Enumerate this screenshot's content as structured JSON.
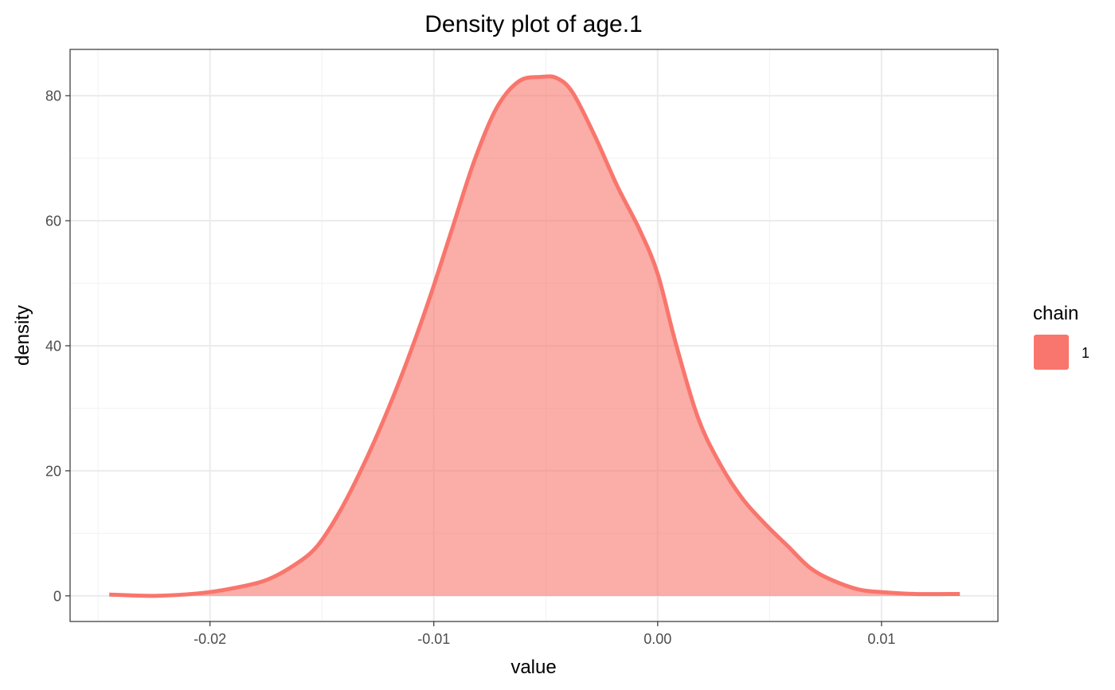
{
  "chart_data": {
    "type": "area",
    "title": "Density plot of  age.1",
    "xlabel": "value",
    "ylabel": "density",
    "xlim": [
      -0.02625,
      0.0152
    ],
    "ylim": [
      -4.1,
      87.4
    ],
    "x_ticks": [
      -0.02,
      -0.01,
      0.0,
      0.01
    ],
    "x_tick_labels": [
      "-0.02",
      "-0.01",
      "0.00",
      "0.01"
    ],
    "y_ticks": [
      0,
      20,
      40,
      60,
      80
    ],
    "y_tick_labels": [
      "0",
      "20",
      "40",
      "60",
      "80"
    ],
    "grid": true,
    "legend": {
      "title": "chain",
      "placement": "right"
    },
    "series": [
      {
        "name": "1",
        "color": "#f8766d",
        "fill_color": "#f8766d",
        "fill_opacity": 0.6,
        "x": [
          -0.0245,
          -0.0225,
          -0.0205,
          -0.019,
          -0.0175,
          -0.0162,
          -0.0152,
          -0.0142,
          -0.0132,
          -0.0122,
          -0.0112,
          -0.0102,
          -0.0092,
          -0.0082,
          -0.0072,
          -0.0062,
          -0.0052,
          -0.0045,
          -0.0038,
          -0.0028,
          -0.0018,
          -0.0008,
          0.0,
          0.0008,
          0.0018,
          0.0028,
          0.0038,
          0.0048,
          0.0058,
          0.0068,
          0.0078,
          0.009,
          0.01,
          0.0115,
          0.0135
        ],
        "y": [
          0.2,
          0.0,
          0.4,
          1.2,
          2.5,
          5.0,
          8.0,
          13.5,
          20.5,
          28.5,
          37.5,
          47.5,
          58.5,
          69.5,
          78.0,
          82.3,
          83.0,
          82.8,
          80.5,
          73.5,
          65.5,
          58.5,
          51.5,
          40.5,
          28.5,
          21.0,
          15.5,
          11.5,
          8.0,
          4.5,
          2.5,
          1.0,
          0.6,
          0.3,
          0.3
        ]
      }
    ]
  }
}
